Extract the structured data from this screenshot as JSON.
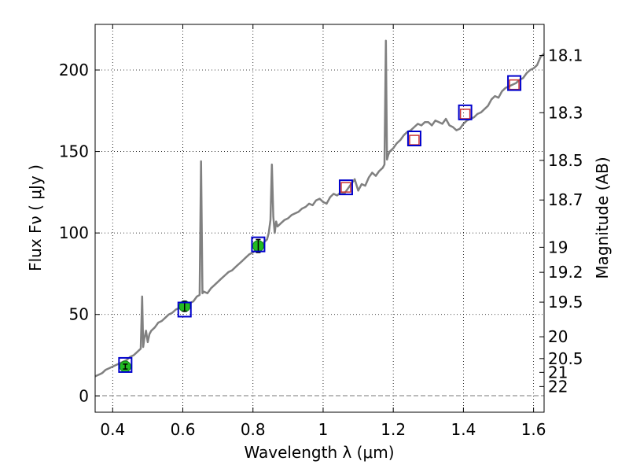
{
  "chart_data": {
    "type": "line",
    "xlabel": "Wavelength  λ (μm)",
    "ylabel": "Flux  Fν  ( μJy )",
    "y2label": "Magnitude (AB)",
    "xlim": [
      0.35,
      1.63
    ],
    "ylim": [
      -10,
      228
    ],
    "grid": true,
    "grid_style": "dotted",
    "x_ticks": [
      {
        "value": 0.4,
        "label": "0.4"
      },
      {
        "value": 0.6,
        "label": "0.6"
      },
      {
        "value": 0.8,
        "label": "0.8"
      },
      {
        "value": 1.0,
        "label": "1"
      },
      {
        "value": 1.2,
        "label": "1.2"
      },
      {
        "value": 1.4,
        "label": "1.4"
      },
      {
        "value": 1.6,
        "label": "1.6"
      }
    ],
    "y_ticks": [
      {
        "value": 0,
        "label": "0"
      },
      {
        "value": 50,
        "label": "50"
      },
      {
        "value": 100,
        "label": "100"
      },
      {
        "value": 150,
        "label": "150"
      },
      {
        "value": 200,
        "label": "200"
      }
    ],
    "mag_ticks": [
      {
        "value": 18.1,
        "label": "18.1"
      },
      {
        "value": 18.3,
        "label": "18.3"
      },
      {
        "value": 18.5,
        "label": "18.5"
      },
      {
        "value": 18.7,
        "label": "18.7"
      },
      {
        "value": 19,
        "label": "19"
      },
      {
        "value": 19.2,
        "label": "19.2"
      },
      {
        "value": 19.5,
        "label": "19.5"
      },
      {
        "value": 20,
        "label": "20"
      },
      {
        "value": 20.5,
        "label": "20.5"
      },
      {
        "value": 21,
        "label": "21"
      },
      {
        "value": 22,
        "label": "22"
      }
    ],
    "spectrum": {
      "color": "#808080",
      "x": [
        0.35,
        0.36,
        0.37,
        0.38,
        0.39,
        0.4,
        0.41,
        0.42,
        0.43,
        0.44,
        0.45,
        0.46,
        0.47,
        0.48,
        0.484,
        0.487,
        0.49,
        0.495,
        0.5,
        0.505,
        0.51,
        0.52,
        0.53,
        0.54,
        0.55,
        0.56,
        0.57,
        0.58,
        0.59,
        0.6,
        0.61,
        0.62,
        0.63,
        0.64,
        0.648,
        0.652,
        0.656,
        0.66,
        0.67,
        0.68,
        0.69,
        0.7,
        0.71,
        0.72,
        0.73,
        0.74,
        0.75,
        0.76,
        0.77,
        0.78,
        0.79,
        0.8,
        0.81,
        0.82,
        0.83,
        0.84,
        0.845,
        0.85,
        0.854,
        0.858,
        0.862,
        0.866,
        0.87,
        0.88,
        0.89,
        0.9,
        0.91,
        0.92,
        0.93,
        0.94,
        0.95,
        0.96,
        0.97,
        0.98,
        0.99,
        1.0,
        1.01,
        1.02,
        1.03,
        1.04,
        1.05,
        1.06,
        1.07,
        1.08,
        1.09,
        1.1,
        1.11,
        1.12,
        1.13,
        1.14,
        1.15,
        1.16,
        1.17,
        1.175,
        1.179,
        1.182,
        1.186,
        1.19,
        1.2,
        1.21,
        1.22,
        1.23,
        1.24,
        1.25,
        1.26,
        1.27,
        1.28,
        1.29,
        1.3,
        1.31,
        1.32,
        1.33,
        1.34,
        1.35,
        1.36,
        1.37,
        1.38,
        1.39,
        1.4,
        1.41,
        1.42,
        1.43,
        1.44,
        1.45,
        1.46,
        1.47,
        1.48,
        1.49,
        1.5,
        1.51,
        1.52,
        1.53,
        1.54,
        1.55,
        1.56,
        1.57,
        1.58,
        1.59,
        1.6,
        1.61,
        1.62,
        1.63
      ],
      "y": [
        12,
        13,
        14,
        16,
        17,
        18,
        19,
        20,
        21,
        22,
        24,
        25,
        27,
        29,
        61,
        30,
        35,
        40,
        33,
        38,
        40,
        42,
        45,
        46,
        48,
        50,
        51,
        53,
        54,
        55,
        56,
        57,
        58,
        61,
        62,
        144,
        63,
        64,
        63,
        66,
        68,
        70,
        72,
        74,
        76,
        77,
        79,
        81,
        83,
        85,
        87,
        88,
        90,
        92,
        94,
        96,
        100,
        108,
        142,
        110,
        100,
        107,
        104,
        106,
        108,
        109,
        111,
        112,
        113,
        115,
        116,
        118,
        117,
        120,
        121,
        119,
        118,
        122,
        124,
        123,
        125,
        124,
        127,
        130,
        133,
        126,
        130,
        129,
        134,
        137,
        135,
        138,
        140,
        142,
        218,
        145,
        148,
        150,
        152,
        155,
        157,
        160,
        162,
        163,
        165,
        167,
        166,
        168,
        168,
        166,
        169,
        168,
        167,
        170,
        166,
        165,
        163,
        164,
        167,
        169,
        170,
        171,
        173,
        174,
        176,
        178,
        182,
        184,
        183,
        187,
        189,
        190,
        191,
        192,
        194,
        195,
        198,
        200,
        201,
        203,
        208,
        210
      ]
    },
    "photometry_circles": {
      "color": "#22bb22",
      "x": [
        0.436,
        0.605,
        0.815
      ],
      "y": [
        18,
        55,
        92
      ],
      "yerr": [
        1.5,
        3,
        4
      ]
    },
    "photometry_blue_squares": {
      "color": "#0000cc",
      "x": [
        0.436,
        0.605,
        0.815,
        1.065,
        1.26,
        1.405,
        1.545
      ],
      "y": [
        19,
        53,
        93,
        128,
        158,
        174,
        192
      ]
    },
    "photometry_red_squares": {
      "color": "#cc3333",
      "x": [
        1.065,
        1.26,
        1.405,
        1.545
      ],
      "y": [
        128,
        157,
        173,
        191
      ]
    }
  }
}
